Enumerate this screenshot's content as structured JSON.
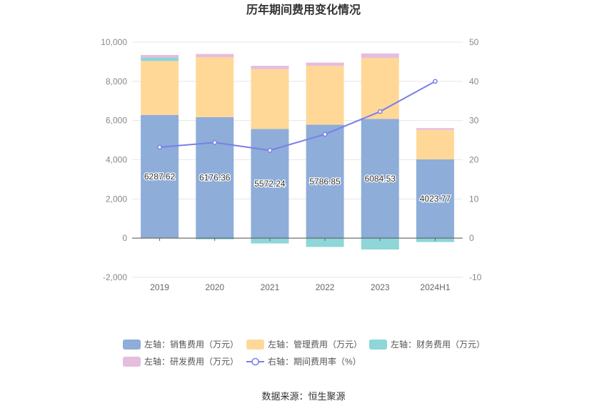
{
  "chart_data": {
    "type": "bar",
    "title": "历年期间费用变化情况",
    "categories": [
      "2019",
      "2020",
      "2021",
      "2022",
      "2023",
      "2024H1"
    ],
    "left_axis": {
      "ylim": [
        -2000,
        10000
      ],
      "ticks": [
        "-2,000",
        "0",
        "2,000",
        "4,000",
        "6,000",
        "8,000",
        "10,000"
      ]
    },
    "right_axis": {
      "ylim": [
        -10,
        50
      ],
      "ticks": [
        "-10",
        "0",
        "10",
        "20",
        "30",
        "40",
        "50"
      ]
    },
    "series": [
      {
        "name": "左轴：销售费用（万元）",
        "axis": "left",
        "stack": true,
        "color": "#8eadd9",
        "values": [
          6287.62,
          6176.36,
          5572.24,
          5786.85,
          6084.53,
          4023.77
        ],
        "labels": [
          "6287.62",
          "6176.36",
          "5572.24",
          "5786.85",
          "6084.53",
          "4023.77"
        ]
      },
      {
        "name": "左轴：管理费用（万元）",
        "axis": "left",
        "stack": true,
        "color": "#ffd898",
        "values": [
          2750,
          3060,
          3050,
          3000,
          3110,
          1500
        ]
      },
      {
        "name": "左轴：财务费用（万元）",
        "axis": "left",
        "stack": true,
        "color": "#8ed6d8",
        "values": [
          180,
          -60,
          -270,
          -450,
          -580,
          -200
        ]
      },
      {
        "name": "左轴：研发费用（万元）",
        "axis": "left",
        "stack": true,
        "color": "#e5bddd",
        "values": [
          130,
          160,
          170,
          170,
          230,
          90
        ]
      },
      {
        "name": "右轴：期间费用率（%）",
        "axis": "right",
        "type": "line",
        "color": "#7b7fe8",
        "values": [
          23.2,
          24.4,
          22.4,
          26.5,
          32.3,
          40.0
        ]
      }
    ],
    "legend_position": "bottom",
    "grid": true
  },
  "source": "数据来源：恒生聚源"
}
